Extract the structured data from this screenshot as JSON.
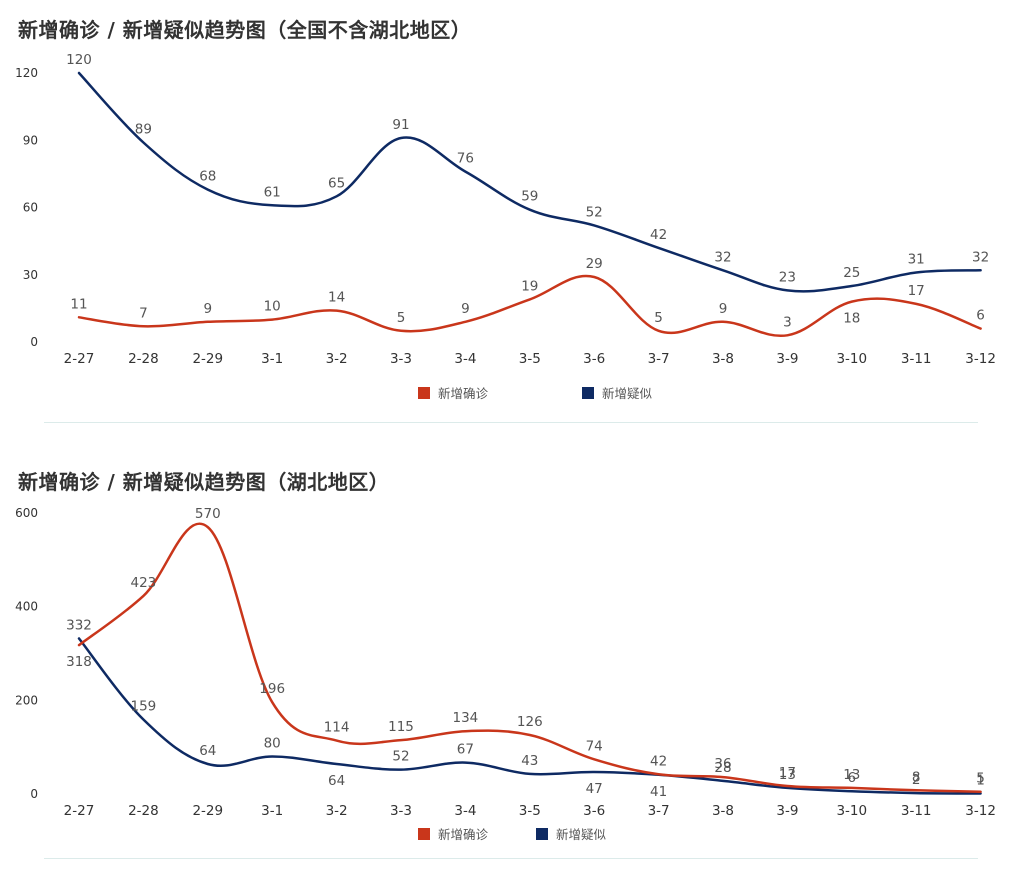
{
  "chart_data": [
    {
      "type": "line",
      "title": "新增确诊 / 新增疑似趋势图（全国不含湖北地区）",
      "categories": [
        "2-27",
        "2-28",
        "2-29",
        "3-1",
        "3-2",
        "3-3",
        "3-4",
        "3-5",
        "3-6",
        "3-7",
        "3-8",
        "3-9",
        "3-10",
        "3-11",
        "3-12"
      ],
      "yticks": [
        0,
        30,
        60,
        90,
        120
      ],
      "ylim": [
        0,
        120
      ],
      "grid": false,
      "legend": "bottom-center",
      "series": [
        {
          "name": "新增确诊",
          "color": "#c9361b",
          "values": [
            11,
            7,
            9,
            10,
            14,
            5,
            9,
            19,
            29,
            5,
            9,
            3,
            18,
            17,
            6
          ]
        },
        {
          "name": "新增疑似",
          "color": "#0e2a63",
          "values": [
            120,
            89,
            68,
            61,
            65,
            91,
            76,
            59,
            52,
            42,
            32,
            23,
            25,
            31,
            32
          ]
        }
      ]
    },
    {
      "type": "line",
      "title": "新增确诊 / 新增疑似趋势图（湖北地区）",
      "categories": [
        "2-27",
        "2-28",
        "2-29",
        "3-1",
        "3-2",
        "3-3",
        "3-4",
        "3-5",
        "3-6",
        "3-7",
        "3-8",
        "3-9",
        "3-10",
        "3-11",
        "3-12"
      ],
      "yticks": [
        0,
        200,
        400,
        600
      ],
      "ylim": [
        0,
        600
      ],
      "grid": false,
      "legend": "bottom-center",
      "series": [
        {
          "name": "新增确诊",
          "color": "#c9361b",
          "values": [
            318,
            423,
            570,
            196,
            114,
            115,
            134,
            126,
            74,
            42,
            36,
            17,
            13,
            8,
            5
          ]
        },
        {
          "name": "新增疑似",
          "color": "#0e2a63",
          "values": [
            332,
            159,
            64,
            80,
            64,
            52,
            67,
            43,
            47,
            41,
            28,
            13,
            6,
            2,
            1
          ]
        }
      ]
    }
  ]
}
